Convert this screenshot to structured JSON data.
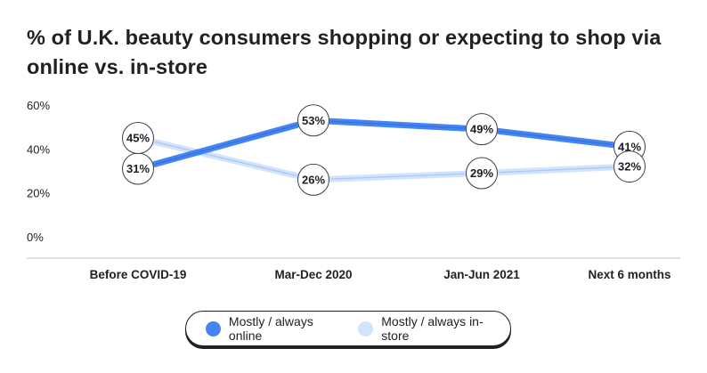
{
  "title": "% of U.K. beauty consumers shopping or expecting to shop via online vs. in-store",
  "colors": {
    "online": "#4285f4",
    "online_dark": "#3a6fd8",
    "instore": "#d2e3fc",
    "axis": "#5f6368",
    "text": "#202124"
  },
  "legend": [
    {
      "label": "Mostly / always online",
      "color": "#4285f4"
    },
    {
      "label": "Mostly / always in-store",
      "color": "#d2e3fc"
    }
  ],
  "chart_data": {
    "type": "line",
    "title": "% of U.K. beauty consumers shopping or expecting to shop via online vs. in-store",
    "categories": [
      "Before COVID-19",
      "Mar-Dec 2020",
      "Jan-Jun 2021",
      "Next 6 months"
    ],
    "series": [
      {
        "name": "Mostly / always online",
        "values": [
          31,
          53,
          49,
          41
        ],
        "labels": [
          "31%",
          "53%",
          "49%",
          "41%"
        ]
      },
      {
        "name": "Mostly / always in-store",
        "values": [
          45,
          26,
          29,
          32
        ],
        "labels": [
          "45%",
          "26%",
          "29%",
          "32%"
        ]
      }
    ],
    "yticks": [
      "0%",
      "20%",
      "40%",
      "60%"
    ],
    "ylim": [
      0,
      60
    ],
    "legend_position": "bottom",
    "grid": false
  }
}
